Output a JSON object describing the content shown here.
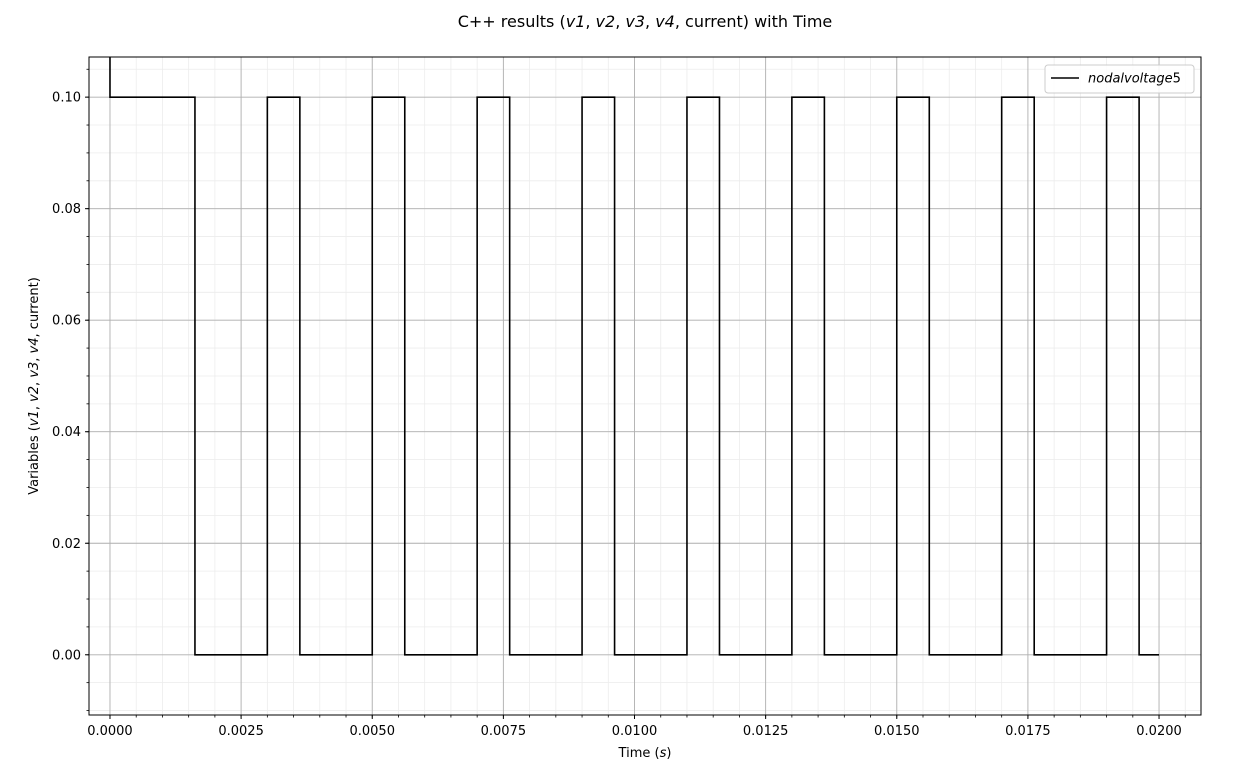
{
  "chart_data": {
    "type": "line",
    "title": "C++ results (v1, v2, v3, v4, current) with Time",
    "xlabel": "Time (s)",
    "ylabel": "Variables (v1, v2, v3, v4, current)",
    "xlim": [
      -0.0004,
      0.0208
    ],
    "ylim": [
      -0.0108,
      0.1072
    ],
    "x_ticks": [
      0.0,
      0.0025,
      0.005,
      0.0075,
      0.01,
      0.0125,
      0.015,
      0.0175,
      0.02
    ],
    "x_tick_labels": [
      "0.0000",
      "0.0025",
      "0.0050",
      "0.0075",
      "0.0100",
      "0.0125",
      "0.0150",
      "0.0175",
      "0.0200"
    ],
    "y_ticks": [
      0.0,
      0.02,
      0.04,
      0.06,
      0.08,
      0.1
    ],
    "y_tick_labels": [
      "0.00",
      "0.02",
      "0.04",
      "0.06",
      "0.08",
      "0.10"
    ],
    "grid": "major and minor",
    "legend_position": "top-right",
    "series": [
      {
        "name": "nodalvoltage5",
        "color": "#000000",
        "x": [
          0.0,
          0.0,
          0.00162,
          0.00162,
          0.003,
          0.003,
          0.00362,
          0.00362,
          0.005,
          0.005,
          0.00562,
          0.00562,
          0.007,
          0.007,
          0.00762,
          0.00762,
          0.009,
          0.009,
          0.00962,
          0.00962,
          0.011,
          0.011,
          0.01162,
          0.01162,
          0.013,
          0.013,
          0.01362,
          0.01362,
          0.015,
          0.015,
          0.01562,
          0.01562,
          0.017,
          0.017,
          0.01762,
          0.01762,
          0.019,
          0.019,
          0.01962,
          0.01962,
          0.02
        ],
        "y": [
          0.12,
          0.1,
          0.1,
          0.0,
          0.0,
          0.1,
          0.1,
          0.0,
          0.0,
          0.1,
          0.1,
          0.0,
          0.0,
          0.1,
          0.1,
          0.0,
          0.0,
          0.1,
          0.1,
          0.0,
          0.0,
          0.1,
          0.1,
          0.0,
          0.0,
          0.1,
          0.1,
          0.0,
          0.0,
          0.1,
          0.1,
          0.0,
          0.0,
          0.1,
          0.1,
          0.0,
          0.0,
          0.1,
          0.1,
          0.0,
          0.0
        ]
      }
    ]
  }
}
